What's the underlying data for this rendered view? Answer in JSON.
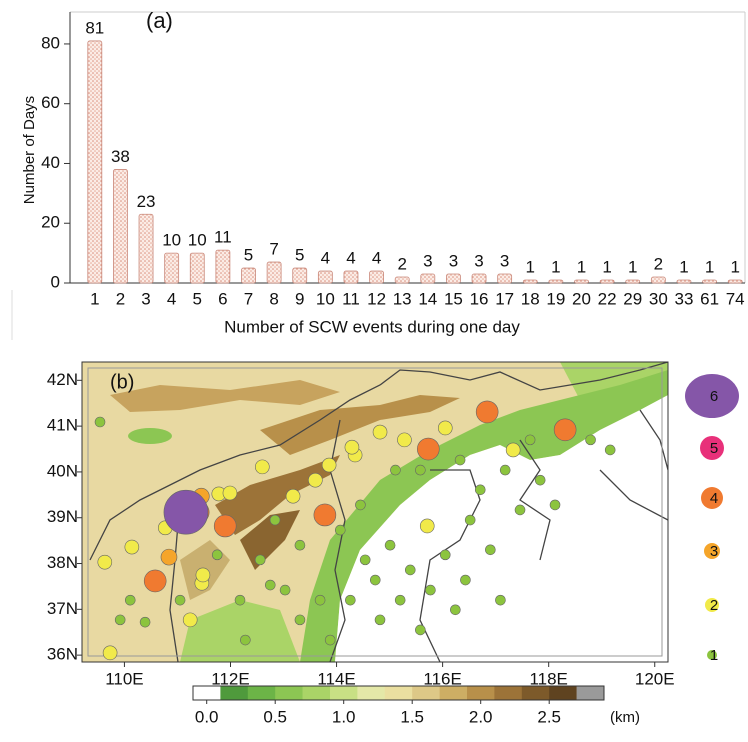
{
  "chart_data": [
    {
      "type": "bar",
      "annotation": "(a)",
      "ylabel": "Number of Days",
      "xlabel": "Number of SCW events during one day",
      "categories": [
        "1",
        "2",
        "3",
        "4",
        "5",
        "6",
        "7",
        "8",
        "9",
        "10",
        "11",
        "12",
        "13",
        "14",
        "15",
        "16",
        "17",
        "18",
        "19",
        "20",
        "22",
        "29",
        "30",
        "33",
        "61",
        "74"
      ],
      "values": [
        81,
        38,
        23,
        10,
        10,
        11,
        5,
        7,
        5,
        4,
        4,
        4,
        2,
        3,
        3,
        3,
        3,
        1,
        1,
        1,
        1,
        1,
        2,
        1,
        1,
        1
      ],
      "color": "#f7dcd2",
      "ylim": [
        0,
        85
      ],
      "yticks": [
        0,
        20,
        40,
        60,
        80
      ]
    },
    {
      "type": "map",
      "annotation": "(b)",
      "xlim": [
        109.2,
        120.25
      ],
      "ylim": [
        35.85,
        42.4
      ],
      "xticks": [
        {
          "value": 110,
          "label": "110E"
        },
        {
          "value": 112,
          "label": "112E"
        },
        {
          "value": 114,
          "label": "114E"
        },
        {
          "value": 116,
          "label": "116E"
        },
        {
          "value": 118,
          "label": "118E"
        },
        {
          "value": 120,
          "label": "120E"
        }
      ],
      "yticks": [
        {
          "value": 36,
          "label": "36N"
        },
        {
          "value": 37,
          "label": "37N"
        },
        {
          "value": 38,
          "label": "38N"
        },
        {
          "value": 39,
          "label": "39N"
        },
        {
          "value": 40,
          "label": "40N"
        },
        {
          "value": 41,
          "label": "41N"
        },
        {
          "value": 42,
          "label": "42N"
        }
      ],
      "legend": {
        "values": [
          6,
          5,
          4,
          3,
          2,
          1
        ],
        "colors": [
          "#8556a8",
          "#e8307a",
          "#f07a30",
          "#f5a52a",
          "#f1ea4a",
          "#8cc43e"
        ]
      },
      "stations": {
        "lon": [
          111.16,
          111.39,
          111.9,
          113.78,
          115.73,
          116.84,
          118.31,
          110.58,
          110.84,
          111.45,
          109.63,
          110.14,
          109.73,
          111.99,
          111.78,
          113.86,
          114.29,
          113.6,
          111.48,
          110.77,
          116.05,
          114.82,
          115.28,
          117.33,
          115.71,
          111.24,
          111.46,
          112.6,
          113.18,
          114.35,
          109.54,
          110.11,
          110.39,
          111.05,
          111.75,
          112.18,
          112.56,
          112.84,
          113.03,
          113.31,
          113.31,
          113.69,
          112.28,
          114.26,
          114.54,
          114.73,
          114.82,
          115.01,
          115.2,
          115.39,
          115.58,
          115.77,
          116.05,
          116.24,
          116.43,
          116.52,
          116.71,
          116.9,
          117.09,
          117.18,
          117.46,
          117.65,
          117.84,
          118.12,
          118.79,
          119.16,
          114.45,
          114.07,
          115.58,
          116.33,
          115.11,
          112.75,
          109.92,
          113.88
        ],
        "lat": [
          39.12,
          39.12,
          38.82,
          39.06,
          40.5,
          41.31,
          40.92,
          37.62,
          38.14,
          39.47,
          38.03,
          38.36,
          36.05,
          39.54,
          39.52,
          40.15,
          40.54,
          39.82,
          37.75,
          38.78,
          40.96,
          40.87,
          40.7,
          40.48,
          38.82,
          36.77,
          37.57,
          40.11,
          39.47,
          40.37,
          41.09,
          37.2,
          36.72,
          37.2,
          38.19,
          37.2,
          38.08,
          38.95,
          37.42,
          38.4,
          36.77,
          37.2,
          36.33,
          37.2,
          38.08,
          37.64,
          36.77,
          38.4,
          37.2,
          37.86,
          36.55,
          37.42,
          38.19,
          36.99,
          37.64,
          38.95,
          39.61,
          38.3,
          37.2,
          40.04,
          39.17,
          40.7,
          39.82,
          39.28,
          40.7,
          40.48,
          39.28,
          38.73,
          40.04,
          40.26,
          40.04,
          37.53,
          36.77,
          36.33
        ],
        "count": [
          6,
          4,
          4,
          4,
          4,
          4,
          4,
          4,
          3,
          3,
          2,
          2,
          2,
          2,
          2,
          2,
          2,
          2,
          2,
          2,
          2,
          2,
          2,
          2,
          2,
          2,
          2,
          2,
          2,
          2,
          1,
          1,
          1,
          1,
          1,
          1,
          1,
          1,
          1,
          1,
          1,
          1,
          1,
          1,
          1,
          1,
          1,
          1,
          1,
          1,
          1,
          1,
          1,
          1,
          1,
          1,
          1,
          1,
          1,
          1,
          1,
          1,
          1,
          1,
          1,
          1,
          1,
          1,
          1,
          1,
          1,
          1,
          1,
          1
        ]
      },
      "colorbar": {
        "lim": [
          -0.1,
          2.9
        ],
        "unit": "(km)",
        "colors": [
          "#ffffff",
          "#4f9a3c",
          "#6cb447",
          "#8cc653",
          "#aad467",
          "#c8e084",
          "#e4e8a8",
          "#eadfa0",
          "#ddc887",
          "#cdae64",
          "#b8904a",
          "#9c7338",
          "#7d5a2a",
          "#5f4320",
          "#9a9a9a"
        ],
        "ticks": [
          {
            "value": 0,
            "label": "0.0"
          },
          0.5,
          {
            "value": 1,
            "label": "1.0"
          },
          1.5,
          {
            "value": 2,
            "label": "2.0"
          },
          2.5
        ]
      }
    }
  ]
}
